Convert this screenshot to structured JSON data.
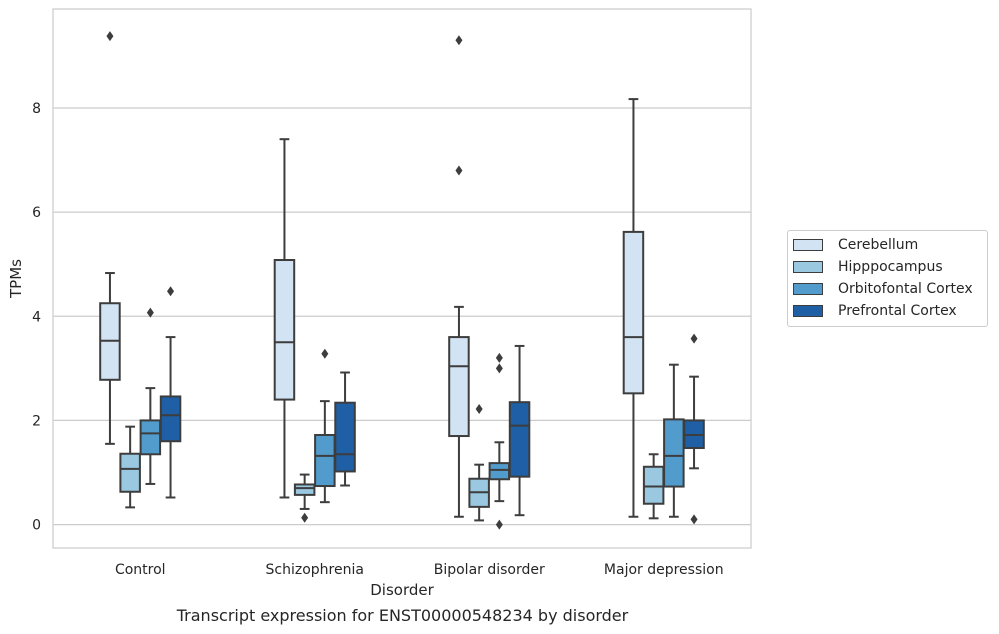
{
  "chart_data": {
    "type": "box",
    "caption": "Transcript expression for ENST00000548234 by disorder",
    "xlabel": "Disorder",
    "ylabel": "TPMs",
    "ylim": [
      -0.45,
      9.9
    ],
    "yticks": [
      0,
      2,
      4,
      6,
      8
    ],
    "grid": "horizontal",
    "legend_position": "right",
    "categories": [
      "Control",
      "Schizophrenia",
      "Bipolar disorder",
      "Major depression"
    ],
    "series": [
      {
        "name": "Cerebellum",
        "color": "#d2e3f3",
        "boxes": [
          {
            "whisker_low": 1.55,
            "q1": 2.78,
            "median": 3.53,
            "q3": 4.25,
            "whisker_high": 4.83,
            "outliers": [
              9.38
            ]
          },
          {
            "whisker_low": 0.52,
            "q1": 2.4,
            "median": 3.5,
            "q3": 5.08,
            "whisker_high": 7.4,
            "outliers": []
          },
          {
            "whisker_low": 0.15,
            "q1": 1.7,
            "median": 3.04,
            "q3": 3.6,
            "whisker_high": 4.18,
            "outliers": [
              9.3,
              6.8
            ]
          },
          {
            "whisker_low": 0.15,
            "q1": 2.52,
            "median": 3.6,
            "q3": 5.62,
            "whisker_high": 8.17,
            "outliers": []
          }
        ]
      },
      {
        "name": "Hipppocampus",
        "color": "#9ac8e0",
        "boxes": [
          {
            "whisker_low": 0.33,
            "q1": 0.63,
            "median": 1.07,
            "q3": 1.36,
            "whisker_high": 1.88,
            "outliers": []
          },
          {
            "whisker_low": 0.3,
            "q1": 0.57,
            "median": 0.7,
            "q3": 0.77,
            "whisker_high": 0.96,
            "outliers": [
              0.13
            ]
          },
          {
            "whisker_low": 0.08,
            "q1": 0.34,
            "median": 0.62,
            "q3": 0.88,
            "whisker_high": 1.15,
            "outliers": [
              2.22
            ]
          },
          {
            "whisker_low": 0.12,
            "q1": 0.4,
            "median": 0.73,
            "q3": 1.11,
            "whisker_high": 1.35,
            "outliers": []
          }
        ]
      },
      {
        "name": "Orbitofontal Cortex",
        "color": "#519ccc",
        "boxes": [
          {
            "whisker_low": 0.78,
            "q1": 1.35,
            "median": 1.75,
            "q3": 2.0,
            "whisker_high": 2.62,
            "outliers": [
              4.07
            ]
          },
          {
            "whisker_low": 0.43,
            "q1": 0.74,
            "median": 1.32,
            "q3": 1.72,
            "whisker_high": 2.37,
            "outliers": [
              3.28
            ]
          },
          {
            "whisker_low": 0.45,
            "q1": 0.87,
            "median": 1.05,
            "q3": 1.18,
            "whisker_high": 1.58,
            "outliers": [
              0.0,
              3.0,
              3.2
            ]
          },
          {
            "whisker_low": 0.15,
            "q1": 0.73,
            "median": 1.32,
            "q3": 2.02,
            "whisker_high": 3.07,
            "outliers": []
          }
        ]
      },
      {
        "name": "Prefrontal Cortex",
        "color": "#1f5fa6",
        "boxes": [
          {
            "whisker_low": 0.52,
            "q1": 1.6,
            "median": 2.1,
            "q3": 2.46,
            "whisker_high": 3.6,
            "outliers": [
              4.48
            ]
          },
          {
            "whisker_low": 0.75,
            "q1": 1.02,
            "median": 1.35,
            "q3": 2.34,
            "whisker_high": 2.92,
            "outliers": []
          },
          {
            "whisker_low": 0.18,
            "q1": 0.92,
            "median": 1.9,
            "q3": 2.35,
            "whisker_high": 3.43,
            "outliers": []
          },
          {
            "whisker_low": 1.08,
            "q1": 1.47,
            "median": 1.72,
            "q3": 2.0,
            "whisker_high": 2.84,
            "outliers": [
              0.1,
              3.57
            ]
          }
        ]
      }
    ]
  }
}
